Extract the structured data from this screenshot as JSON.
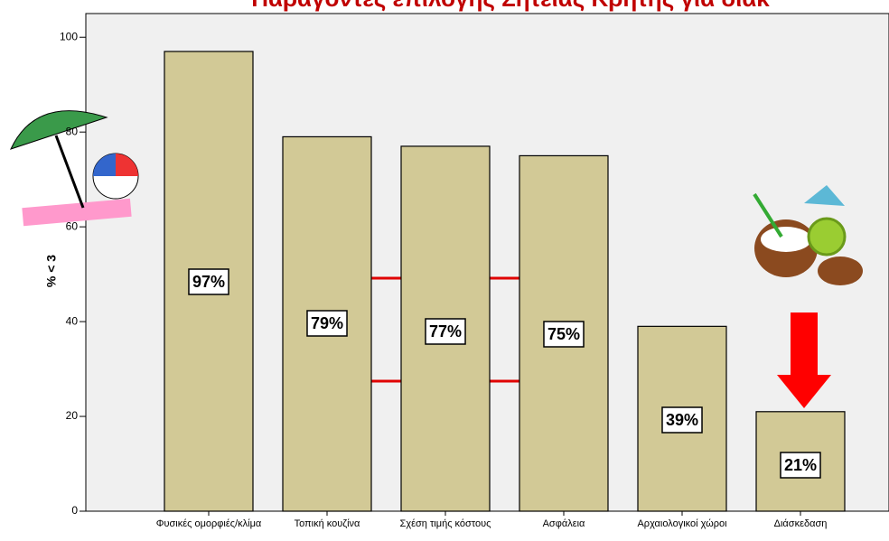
{
  "chart_data": {
    "type": "bar",
    "title": "Παράγοντες επιλογής Σητείας Κρήτης για διακ",
    "y_label": "% < 3",
    "categories": [
      "Φυσικές ομορφιές/κλίμα",
      "Τοπική κουζίνα",
      "Σχέση τιμής κόστους",
      "Ασφάλεια",
      "Αρχαιολογικοί χώροι",
      "Διάσκεδαση"
    ],
    "values": [
      97,
      79,
      77,
      75,
      39,
      21
    ],
    "value_labels": [
      "97%",
      "79%",
      "77%",
      "75%",
      "39%",
      "21%"
    ],
    "color": "#d2c996",
    "ylim": [
      0,
      105
    ],
    "yticks": [
      0,
      20,
      40,
      60,
      80,
      100
    ],
    "grid": false
  }
}
